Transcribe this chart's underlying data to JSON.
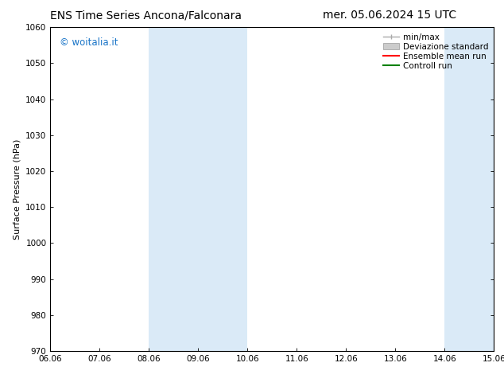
{
  "title_left": "ENS Time Series Ancona/Falconara",
  "title_right": "mer. 05.06.2024 15 UTC",
  "ylabel": "Surface Pressure (hPa)",
  "ylim": [
    970,
    1060
  ],
  "yticks": [
    970,
    980,
    990,
    1000,
    1010,
    1020,
    1030,
    1040,
    1050,
    1060
  ],
  "xlim_dates": [
    "06.06",
    "07.06",
    "08.06",
    "09.06",
    "10.06",
    "11.06",
    "12.06",
    "13.06",
    "14.06",
    "15.06"
  ],
  "xtick_positions": [
    0,
    1,
    2,
    3,
    4,
    5,
    6,
    7,
    8,
    9
  ],
  "shaded_bands": [
    {
      "xmin": 2,
      "xmax": 3,
      "color": "#daeaf7"
    },
    {
      "xmin": 3,
      "xmax": 4,
      "color": "#daeaf7"
    },
    {
      "xmin": 8,
      "xmax": 9,
      "color": "#daeaf7"
    }
  ],
  "watermark_text": "© woitalia.it",
  "watermark_color": "#1a75c8",
  "legend_entries": [
    {
      "label": "min/max",
      "color": "#aaaaaa",
      "style": "minmax"
    },
    {
      "label": "Deviazione standard",
      "color": "#cccccc",
      "style": "std"
    },
    {
      "label": "Ensemble mean run",
      "color": "red",
      "style": "line"
    },
    {
      "label": "Controll run",
      "color": "green",
      "style": "line"
    }
  ],
  "bg_color": "#ffffff",
  "title_fontsize": 10,
  "axis_label_fontsize": 8,
  "tick_fontsize": 7.5,
  "legend_fontsize": 7.5
}
